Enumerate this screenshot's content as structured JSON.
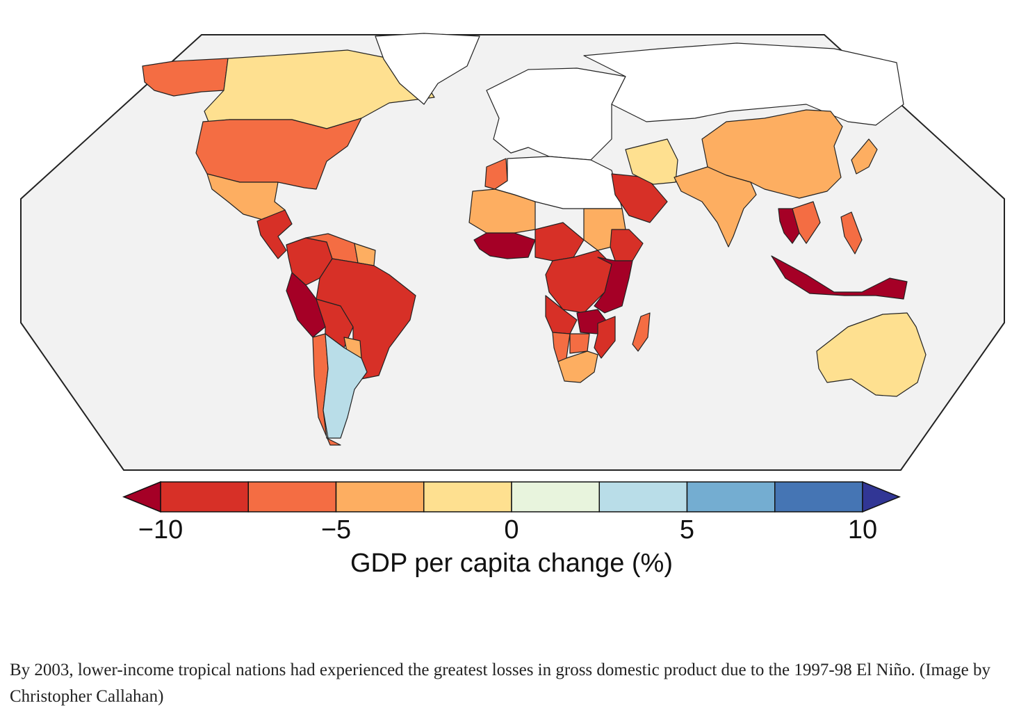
{
  "map": {
    "ocean_color": "#f2f2f2",
    "no_data_color": "#ffffff",
    "regions": [
      {
        "name": "Alaska",
        "bin": -5
      },
      {
        "name": "Canada",
        "bin": 0
      },
      {
        "name": "United States",
        "bin": -5
      },
      {
        "name": "Mexico",
        "bin": -2.5
      },
      {
        "name": "Central America",
        "bin": -7.5
      },
      {
        "name": "Colombia",
        "bin": -7.5
      },
      {
        "name": "Venezuela",
        "bin": -5
      },
      {
        "name": "Guianas",
        "bin": -2.5
      },
      {
        "name": "Peru",
        "bin": -10
      },
      {
        "name": "Bolivia",
        "bin": -7.5
      },
      {
        "name": "Brazil",
        "bin": -7.5
      },
      {
        "name": "Paraguay",
        "bin": -2.5
      },
      {
        "name": "Chile",
        "bin": -5
      },
      {
        "name": "Argentina",
        "bin": 5
      },
      {
        "name": "Greenland",
        "bin": null
      },
      {
        "name": "Europe",
        "bin": null
      },
      {
        "name": "Russia",
        "bin": null
      },
      {
        "name": "Morocco",
        "bin": -5
      },
      {
        "name": "North Africa",
        "bin": null
      },
      {
        "name": "Sahel West",
        "bin": -2.5
      },
      {
        "name": "Sudan",
        "bin": -2.5
      },
      {
        "name": "Ethiopia",
        "bin": -7.5
      },
      {
        "name": "West Africa Coast",
        "bin": -10
      },
      {
        "name": "Nigeria",
        "bin": -7.5
      },
      {
        "name": "Central Africa",
        "bin": -7.5
      },
      {
        "name": "East Africa",
        "bin": -10
      },
      {
        "name": "Angola",
        "bin": -7.5
      },
      {
        "name": "Zambia",
        "bin": -10
      },
      {
        "name": "Namibia",
        "bin": -5
      },
      {
        "name": "Botswana",
        "bin": -5
      },
      {
        "name": "South Africa",
        "bin": -2.5
      },
      {
        "name": "Mozambique",
        "bin": -7.5
      },
      {
        "name": "Madagascar",
        "bin": -5
      },
      {
        "name": "Saudi Arabia",
        "bin": -7.5
      },
      {
        "name": "Iran",
        "bin": 0
      },
      {
        "name": "China",
        "bin": -2.5
      },
      {
        "name": "India",
        "bin": -2.5
      },
      {
        "name": "Thailand",
        "bin": -10
      },
      {
        "name": "Indochina",
        "bin": -5
      },
      {
        "name": "Philippines",
        "bin": -5
      },
      {
        "name": "Indonesia",
        "bin": -10
      },
      {
        "name": "Japan",
        "bin": -2.5
      },
      {
        "name": "Australia",
        "bin": 0
      }
    ]
  },
  "colorbar": {
    "title": "GDP per capita change (%)",
    "range": [
      -10,
      10
    ],
    "bins": [
      {
        "from": -10,
        "to": -7.5,
        "color": "#d73027"
      },
      {
        "from": -7.5,
        "to": -5,
        "color": "#f46d43"
      },
      {
        "from": -5,
        "to": -2.5,
        "color": "#fdae61"
      },
      {
        "from": -2.5,
        "to": 0,
        "color": "#fee090"
      },
      {
        "from": 0,
        "to": 2.5,
        "color": "#e8f4dd"
      },
      {
        "from": 2.5,
        "to": 5,
        "color": "#b9dde8"
      },
      {
        "from": 5,
        "to": 7.5,
        "color": "#74add1"
      },
      {
        "from": 7.5,
        "to": 10,
        "color": "#4575b4"
      }
    ],
    "under_color": "#a50026",
    "over_color": "#313695",
    "ticks": [
      {
        "value": -10,
        "label": "−10"
      },
      {
        "value": -5,
        "label": "−5"
      },
      {
        "value": 0,
        "label": "0"
      },
      {
        "value": 5,
        "label": "5"
      },
      {
        "value": 10,
        "label": "10"
      }
    ]
  },
  "caption": "By 2003, lower-income tropical nations had experienced the greatest losses in gross domestic product due to the 1997-98 El Niño. (Image by Christopher Callahan)"
}
